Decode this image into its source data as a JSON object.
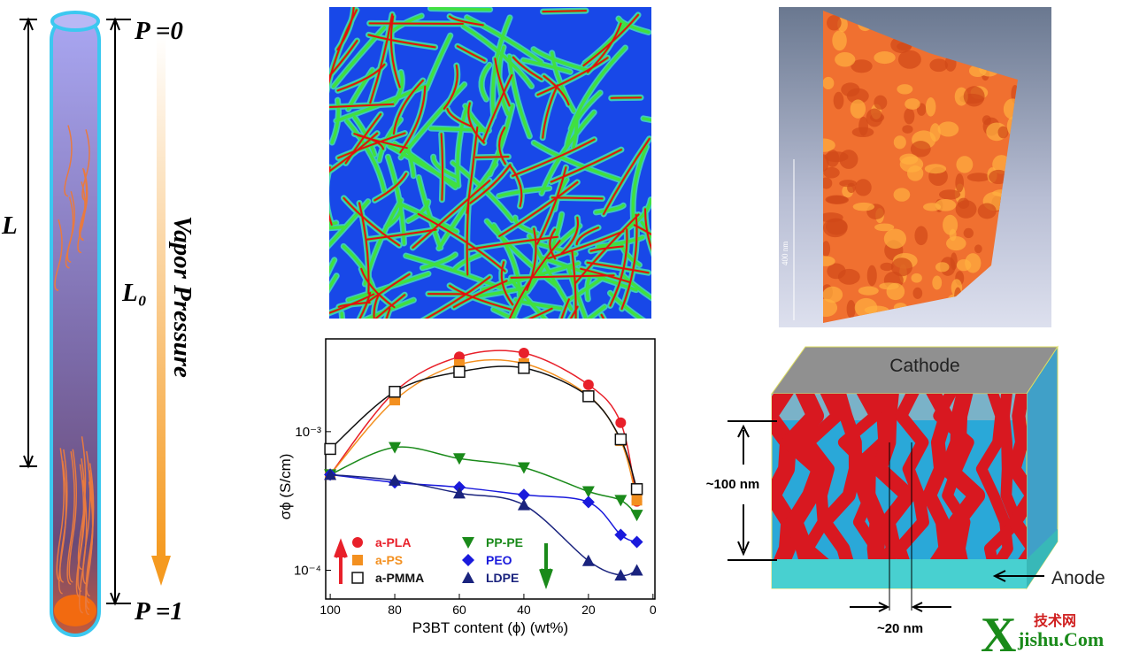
{
  "tube": {
    "top_label": "P =0",
    "bottom_label": "P =1",
    "length_label": "L",
    "initial_length_label": "L₀",
    "arrow_label": "Vapor Pressure"
  },
  "micrograph": {
    "scale_label": "400 nm"
  },
  "device": {
    "top_label": "Cathode",
    "bottom_label": "Anode",
    "thickness_label": "~100 nm",
    "domain_label": "~20 nm"
  },
  "watermark": {
    "letter": "X",
    "site": "jishu.Com",
    "chinese": "技术网"
  },
  "chart_data": {
    "type": "scatter",
    "xlabel": "P3BT content (ϕ) (wt%)",
    "ylabel": "σϕ (S/cm)",
    "ylog": true,
    "xlim": [
      101.4,
      -0.6
    ],
    "xticks": [
      100,
      80,
      60,
      40,
      20,
      0
    ],
    "ylim": [
      6.2e-05,
      0.00467
    ],
    "yticks": [
      {
        "value": 0.0001,
        "label": "10⁻⁴"
      },
      {
        "value": 0.001,
        "label": "10⁻³"
      }
    ],
    "series": [
      {
        "name": "a-PLA",
        "color": "#e8202a",
        "marker": "circle",
        "x": [
          100,
          80,
          60,
          40,
          20,
          10,
          5
        ],
        "values": [
          0.00049,
          0.00194,
          0.00347,
          0.00369,
          0.00218,
          0.00116,
          0.000314
        ]
      },
      {
        "name": "a-PS",
        "color": "#f39020",
        "marker": "square",
        "x": [
          100,
          80,
          60,
          40,
          20,
          10,
          5
        ],
        "values": [
          0.00049,
          0.00169,
          0.00305,
          0.0031,
          0.00182,
          0.00086,
          0.00032
        ]
      },
      {
        "name": "a-PMMA",
        "color": "#111111",
        "marker": "open-square",
        "x": [
          100,
          80,
          60,
          40,
          20,
          10,
          5
        ],
        "values": [
          0.00075,
          0.00194,
          0.0027,
          0.00288,
          0.0018,
          0.00088,
          0.000385
        ]
      },
      {
        "name": "PP-PE",
        "color": "#1a8a1a",
        "marker": "triangle-down",
        "x": [
          100,
          80,
          60,
          40,
          20,
          10,
          5
        ],
        "values": [
          0.00049,
          0.00077,
          0.00064,
          0.00055,
          0.00037,
          0.00032,
          0.00025
        ]
      },
      {
        "name": "PEO",
        "color": "#1a1adc",
        "marker": "diamond",
        "x": [
          100,
          80,
          60,
          40,
          20,
          10,
          5
        ],
        "values": [
          0.00049,
          0.00043,
          0.000397,
          0.00035,
          0.00031,
          0.00018,
          0.00016
        ]
      },
      {
        "name": "LDPE",
        "color": "#1a237e",
        "marker": "triangle-up",
        "x": [
          100,
          80,
          60,
          40,
          20,
          10,
          5
        ],
        "values": [
          0.00049,
          0.000445,
          0.00036,
          0.000296,
          0.000117,
          9.2e-05,
          0.0001
        ]
      }
    ]
  }
}
